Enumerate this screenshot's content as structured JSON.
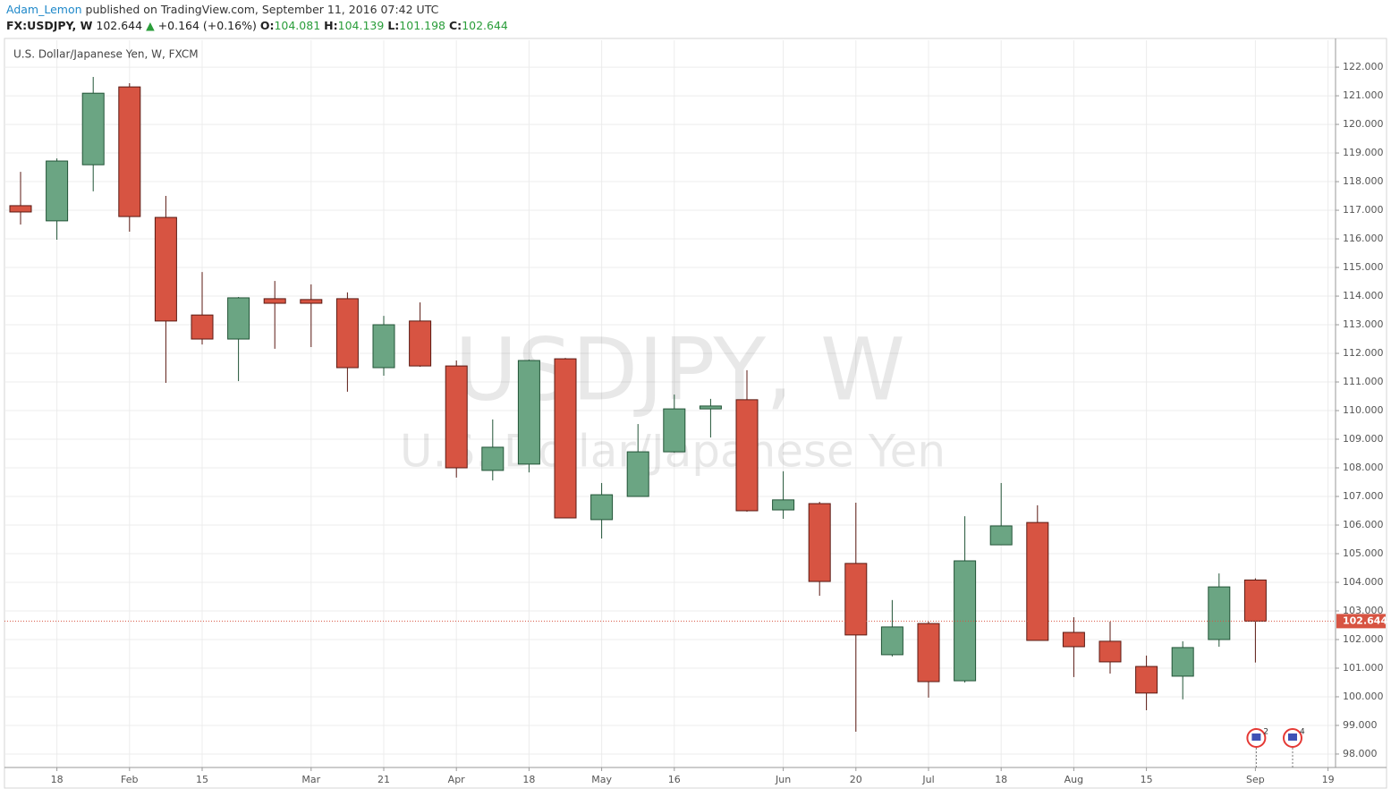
{
  "header": {
    "author": "Adam_Lemon",
    "published": "published on TradingView.com, September 11, 2016 07:42 UTC",
    "symbol": "FX:USDJPY, W",
    "last": 102.644,
    "change": "+0.164 (+0.16%)",
    "ohlc": [
      {
        "label": "O:",
        "value": 104.081
      },
      {
        "label": "H:",
        "value": 104.139
      },
      {
        "label": "L:",
        "value": 101.198
      },
      {
        "label": "C:",
        "value": 102.644
      }
    ]
  },
  "chart_data": {
    "type": "candlestick",
    "title": "U.S. Dollar/Japanese Yen, W, FXCM",
    "watermark": "USDJPY, W",
    "watermark_subtitle": "U.S. Dollar/Japanese Yen",
    "categories": [
      null,
      "18",
      null,
      "Feb",
      null,
      "15",
      null,
      null,
      "Mar",
      null,
      "21",
      null,
      "Apr",
      null,
      "18",
      null,
      "May",
      null,
      "16",
      null,
      null,
      "Jun",
      null,
      "20",
      null,
      "Jul",
      null,
      "18",
      null,
      "Aug",
      null,
      "15",
      null,
      null,
      "Sep",
      null,
      "19"
    ],
    "open": [
      117.16,
      116.63,
      118.59,
      121.31,
      116.75,
      113.34,
      112.5,
      113.91,
      113.88,
      113.91,
      111.5,
      113.13,
      111.56,
      107.91,
      108.13,
      111.81,
      106.19,
      107.0,
      108.56,
      110.06,
      110.38,
      106.53,
      106.75,
      104.66,
      101.47,
      102.56,
      100.56,
      105.31,
      106.09,
      102.25,
      101.94,
      101.06,
      100.72,
      102.0,
      104.081,
      null,
      null
    ],
    "high": [
      118.34,
      118.81,
      121.66,
      121.44,
      117.5,
      114.84,
      113.97,
      114.53,
      114.41,
      114.13,
      113.31,
      113.78,
      111.75,
      109.69,
      111.78,
      111.84,
      107.47,
      109.53,
      110.56,
      110.41,
      111.41,
      107.88,
      106.81,
      106.78,
      103.38,
      102.63,
      106.31,
      107.47,
      106.69,
      102.78,
      102.63,
      101.44,
      101.94,
      104.31,
      104.139,
      null,
      null
    ],
    "low": [
      116.5,
      115.97,
      117.66,
      116.25,
      110.97,
      112.31,
      111.03,
      112.16,
      112.22,
      110.66,
      111.22,
      111.53,
      107.66,
      107.56,
      107.84,
      106.25,
      105.53,
      107.0,
      108.53,
      109.06,
      106.47,
      106.22,
      103.53,
      98.78,
      101.41,
      99.97,
      100.5,
      105.31,
      101.97,
      100.69,
      100.81,
      99.53,
      99.91,
      101.75,
      101.198,
      null,
      null
    ],
    "close": [
      116.94,
      118.72,
      121.09,
      116.78,
      113.13,
      112.5,
      113.94,
      113.75,
      113.75,
      111.5,
      113.0,
      111.56,
      108.0,
      108.72,
      111.75,
      106.25,
      107.06,
      108.56,
      110.06,
      110.16,
      106.5,
      106.88,
      104.03,
      102.16,
      102.44,
      100.53,
      104.75,
      105.97,
      101.97,
      101.75,
      101.22,
      100.13,
      101.72,
      103.84,
      102.644,
      null,
      null
    ],
    "event_labels": [
      null,
      null,
      null,
      null,
      null,
      null,
      null,
      null,
      null,
      null,
      null,
      null,
      null,
      null,
      null,
      null,
      null,
      null,
      null,
      null,
      null,
      null,
      null,
      null,
      null,
      null,
      null,
      null,
      null,
      null,
      null,
      null,
      null,
      null,
      "2",
      "4",
      null
    ],
    "up_color": "#6ba583",
    "down_color": "#d75442",
    "last_price": 102.644,
    "grid": true,
    "ylim": [
      97.53,
      122.94
    ],
    "yticks": [
      {
        "value": 98,
        "label": "98.000"
      },
      {
        "value": 99,
        "label": "99.000"
      },
      {
        "value": 100,
        "label": "100.000"
      },
      {
        "value": 101,
        "label": "101.000"
      },
      {
        "value": 102,
        "label": "102.000"
      },
      {
        "value": 103,
        "label": "103.000"
      },
      {
        "value": 104,
        "label": "104.000"
      },
      {
        "value": 105,
        "label": "105.000"
      },
      {
        "value": 106,
        "label": "106.000"
      },
      {
        "value": 107,
        "label": "107.000"
      },
      {
        "value": 108,
        "label": "108.000"
      },
      {
        "value": 109,
        "label": "109.000"
      },
      {
        "value": 110,
        "label": "110.000"
      },
      {
        "value": 111,
        "label": "111.000"
      },
      {
        "value": 112,
        "label": "112.000"
      },
      {
        "value": 113,
        "label": "113.000"
      },
      {
        "value": 114,
        "label": "114.000"
      },
      {
        "value": 115,
        "label": "115.000"
      },
      {
        "value": 116,
        "label": "116.000"
      },
      {
        "value": 117,
        "label": "117.000"
      },
      {
        "value": 118,
        "label": "118.000"
      },
      {
        "value": 119,
        "label": "119.000"
      },
      {
        "value": 120,
        "label": "120.000"
      },
      {
        "value": 121,
        "label": "121.000"
      },
      {
        "value": 122,
        "label": "122.000"
      }
    ]
  }
}
